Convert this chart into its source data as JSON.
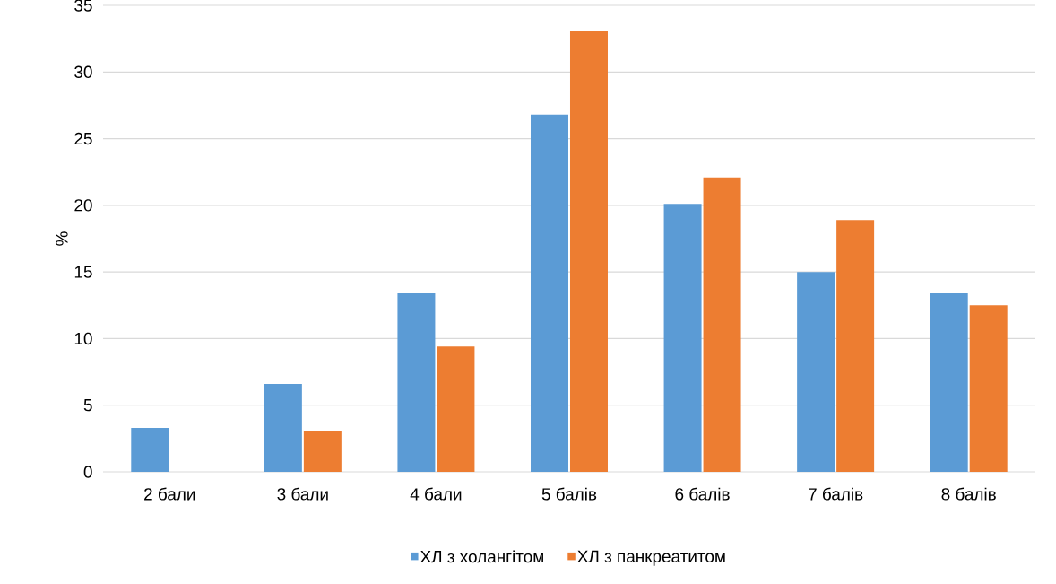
{
  "chart_data": {
    "type": "bar",
    "ylabel": "%",
    "categories": [
      "2 бали",
      "3 бали",
      "4 бали",
      "5 балів",
      "6 балів",
      "7 балів",
      "8 балів"
    ],
    "series": [
      {
        "name": "ХЛ з холангітом",
        "color": "#5b9bd5",
        "values": [
          3.3,
          6.6,
          13.4,
          26.8,
          20.1,
          15.0,
          13.4
        ]
      },
      {
        "name": "ХЛ з панкреатитом",
        "color": "#ed7d31",
        "values": [
          0,
          3.1,
          9.4,
          33.1,
          22.1,
          18.9,
          12.5
        ]
      }
    ],
    "ylim": [
      0,
      35
    ],
    "yticks": [
      0,
      5,
      10,
      15,
      20,
      25,
      30,
      35
    ],
    "grid": "y",
    "legend": "bottom"
  }
}
